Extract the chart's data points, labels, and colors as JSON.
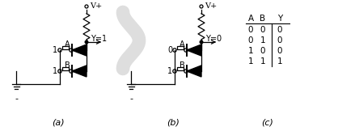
{
  "bg_color": "#ffffff",
  "fig_width": 4.18,
  "fig_height": 1.62,
  "dpi": 100,
  "label_a": "(a)",
  "label_b": "(b)",
  "label_c": "(c)",
  "vplus": "V+",
  "y_eq_1": "Y=1",
  "y_eq_0": "Y=0",
  "truth_headers": [
    "A",
    "B",
    "Y"
  ],
  "truth_rows": [
    [
      "0",
      "0",
      "0"
    ],
    [
      "0",
      "1",
      "0"
    ],
    [
      "1",
      "0",
      "0"
    ],
    [
      "1",
      "1",
      "1"
    ]
  ],
  "input_a1": "1",
  "input_b1": "1",
  "input_a2": "0",
  "input_b2": "1",
  "minus_label": "-",
  "wm_color": "#c8c8c8"
}
